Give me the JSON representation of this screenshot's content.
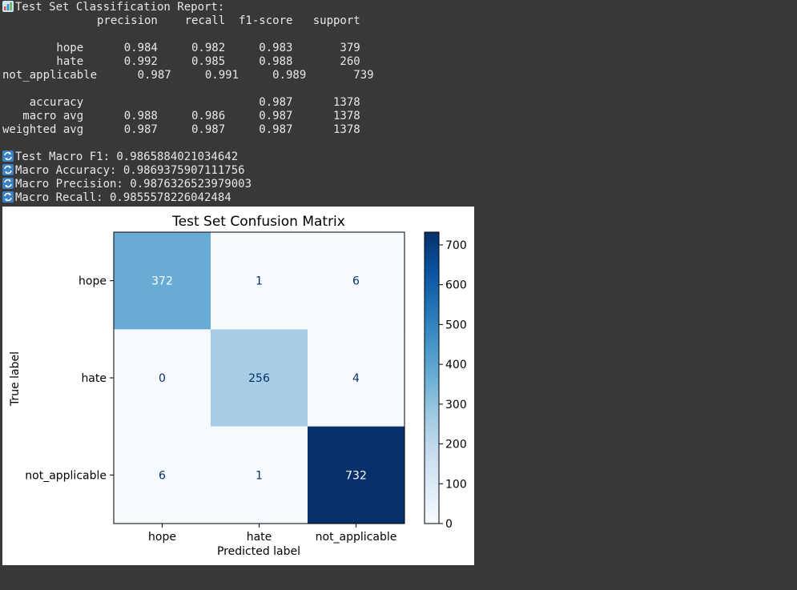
{
  "report": {
    "title": "Test Set Classification Report:",
    "header": "              precision    recall  f1-score   support",
    "rows": [
      "",
      "        hope      0.984     0.982     0.983       379",
      "        hate      0.992     0.985     0.988       260",
      "not_applicable      0.987     0.991     0.989       739",
      "",
      "    accuracy                          0.987      1378",
      "   macro avg      0.988     0.986     0.987      1378",
      "weighted avg      0.987     0.987     0.987      1378",
      ""
    ],
    "metrics": [
      "Test Macro F1: 0.9865884021034642",
      "Macro Accuracy: 0.9869375907111756",
      "Macro Precision: 0.9876326523979003",
      "Macro Recall: 0.9855578226042484"
    ]
  },
  "chart_data": {
    "type": "heatmap",
    "title": "Test Set Confusion Matrix",
    "xlabel": "Predicted label",
    "ylabel": "True label",
    "x_categories": [
      "hope",
      "hate",
      "not_applicable"
    ],
    "y_categories": [
      "hope",
      "hate",
      "not_applicable"
    ],
    "values": [
      [
        372,
        1,
        6
      ],
      [
        0,
        256,
        4
      ],
      [
        6,
        1,
        732
      ]
    ],
    "colormap": "Blues",
    "colorbar": {
      "min": 0,
      "max": 732,
      "ticks": [
        0,
        100,
        200,
        300,
        400,
        500,
        600,
        700
      ]
    }
  }
}
